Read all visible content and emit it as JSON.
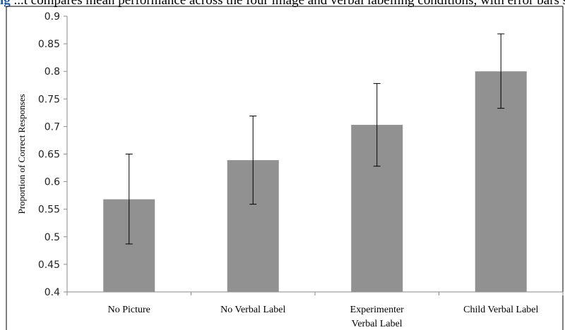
{
  "caption": {
    "label": "ig",
    "text": "...t compares mean performance across the four image and verbal labelling conditions, with error bars showing variability by year"
  },
  "chart_data": {
    "type": "bar",
    "title": "",
    "xlabel": "",
    "ylabel": "Proportion of Correct Responses",
    "categories": [
      [
        "No Picture"
      ],
      [
        "No Verbal Label"
      ],
      [
        "Experimenter",
        "Verbal Label"
      ],
      [
        "Child Verbal Label"
      ]
    ],
    "values": [
      0.568,
      0.639,
      0.703,
      0.8
    ],
    "error_low": [
      0.487,
      0.559,
      0.628,
      0.733
    ],
    "error_high": [
      0.65,
      0.719,
      0.778,
      0.868
    ],
    "ylim": [
      0.4,
      0.9
    ],
    "yticks": [
      0.4,
      0.45,
      0.5,
      0.55,
      0.6,
      0.65,
      0.7,
      0.75,
      0.8,
      0.85,
      0.9
    ],
    "ytick_labels": [
      "0.4",
      "0.45",
      "0.5",
      "0.55",
      "0.6",
      "0.65",
      "0.7",
      "0.75",
      "0.8",
      "0.85",
      "0.9"
    ],
    "grid": false,
    "legend": "none",
    "colors": {
      "bar": "#919191",
      "axis": "#8a8a8a",
      "frame": "#000000",
      "error_bar": "#000000"
    }
  }
}
